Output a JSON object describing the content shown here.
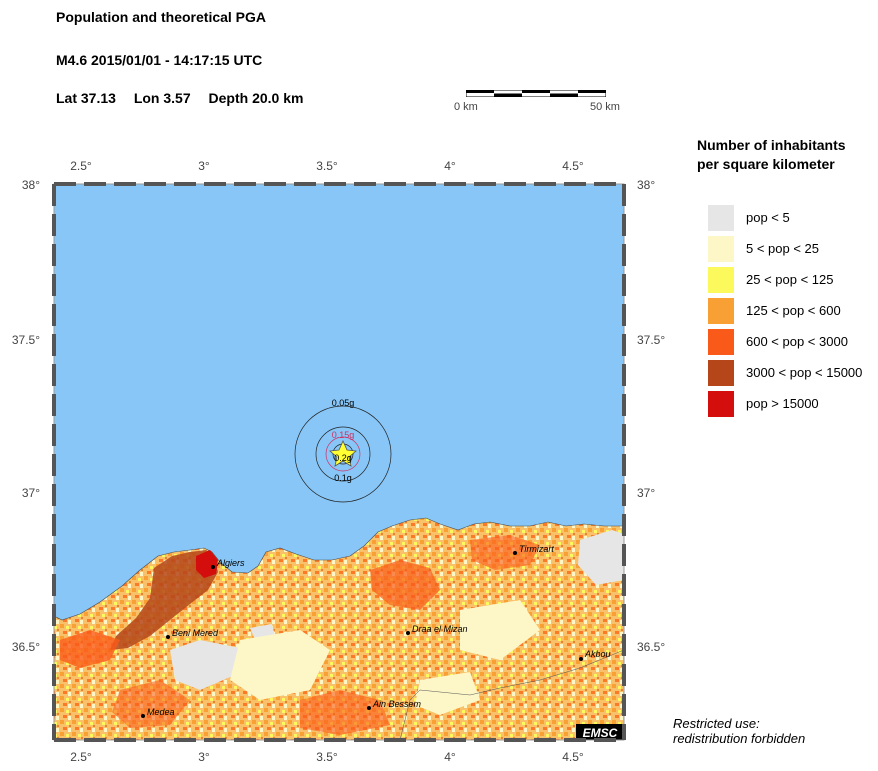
{
  "header": {
    "title": "Population and theoretical PGA",
    "event": "M4.6  2015/01/01 - 14:17:15 UTC",
    "lat": "Lat 37.13",
    "lon": "Lon  3.57",
    "depth": "Depth  20.0 km"
  },
  "scale": {
    "start_label": "0 km",
    "end_label": "50 km"
  },
  "map": {
    "lon_range": [
      2.4,
      4.7
    ],
    "lat_range": [
      36.2,
      38.0
    ],
    "lon_ticks": [
      "2.5°",
      "3°",
      "3.5°",
      "4°",
      "4.5°"
    ],
    "lat_ticks": [
      "38°",
      "37.5°",
      "37°",
      "36.5°"
    ],
    "sea_color": "#87c6f7",
    "epicenter": {
      "lon": 3.57,
      "lat": 37.13
    },
    "pga_circles": [
      {
        "label": "0.05g"
      },
      {
        "label": "0.15g",
        "color": "#cc3366"
      },
      {
        "label": "0.1g"
      },
      {
        "label": "0.2g"
      }
    ],
    "cities": [
      {
        "name": "Algiers",
        "lon": 3.05,
        "lat": 36.76
      },
      {
        "name": "Beni Mered",
        "lon": 2.86,
        "lat": 36.53
      },
      {
        "name": "Draa el Mizan",
        "lon": 3.83,
        "lat": 36.54
      },
      {
        "name": "Tirmizart",
        "lon": 4.27,
        "lat": 36.8
      },
      {
        "name": "Akbou",
        "lon": 4.53,
        "lat": 36.46
      },
      {
        "name": "Medea",
        "lon": 2.76,
        "lat": 36.27
      },
      {
        "name": "Ain Bessem",
        "lon": 3.67,
        "lat": 36.31
      }
    ],
    "logo_text": "EMSC"
  },
  "legend": {
    "title_line1": "Number of inhabitants",
    "title_line2": "per square kilometer",
    "items": [
      {
        "label": "pop < 5",
        "color": "#e6e6e6"
      },
      {
        "label": "5 < pop < 25",
        "color": "#fdf7c7"
      },
      {
        "label": "25 < pop < 125",
        "color": "#fbf95b"
      },
      {
        "label": "125 < pop < 600",
        "color": "#f9a035"
      },
      {
        "label": "600 < pop < 3000",
        "color": "#fa5a19"
      },
      {
        "label": "3000 < pop < 15000",
        "color": "#b4461a"
      },
      {
        "label": "pop > 15000",
        "color": "#d40d0d"
      }
    ]
  },
  "footer": {
    "line1": "Restricted use:",
    "line2": "redistribution forbidden"
  }
}
